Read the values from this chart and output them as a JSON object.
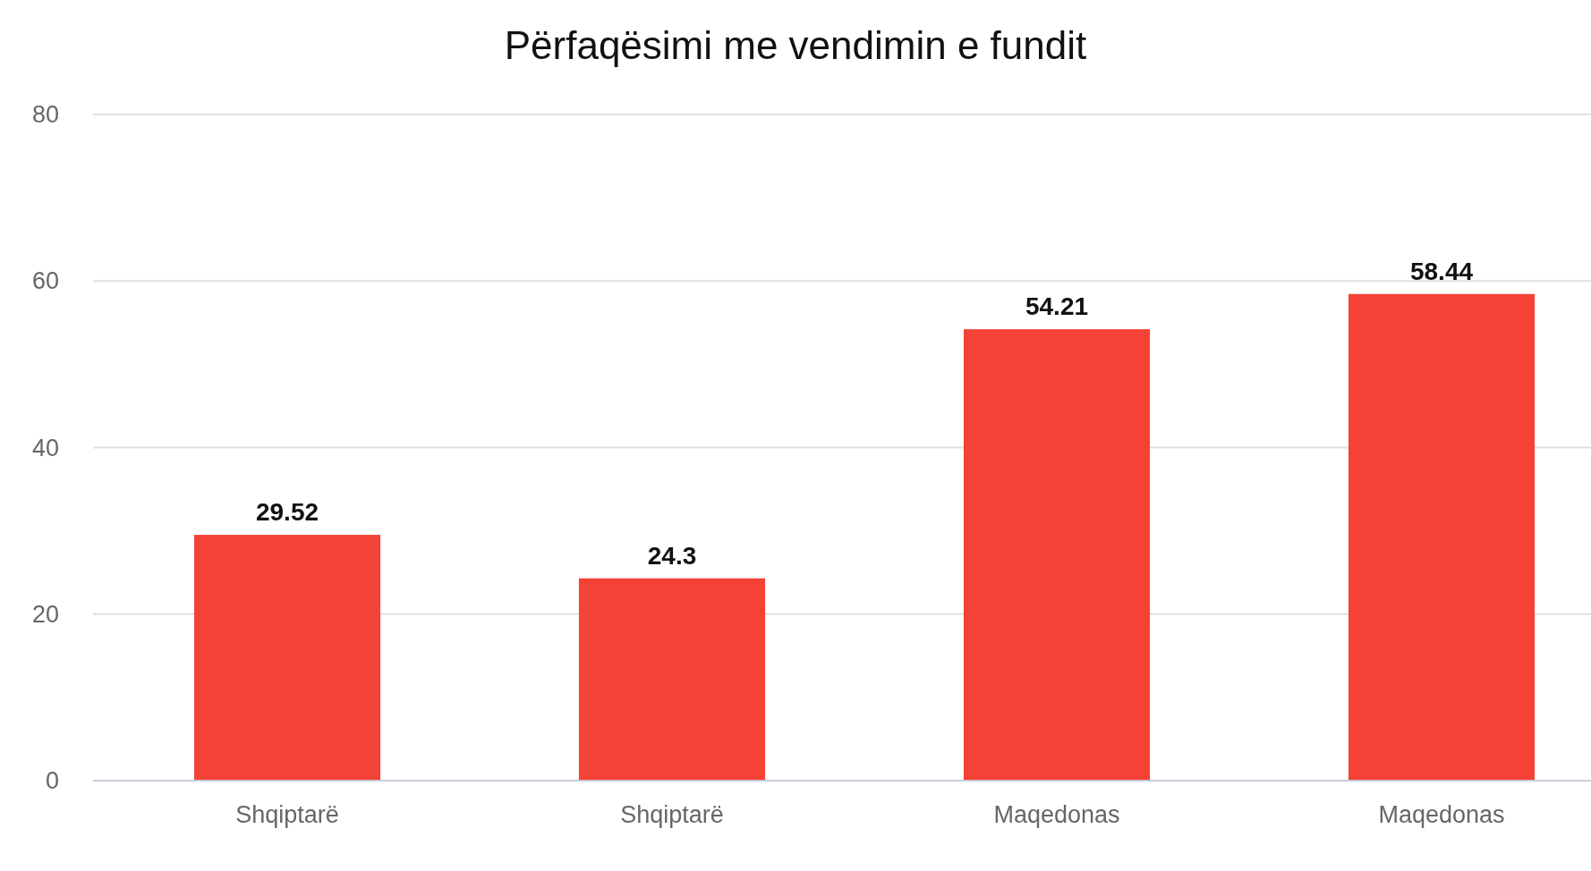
{
  "chart_data": {
    "type": "bar",
    "title": "Përfaqësimi me vendimin e fundit",
    "categories": [
      "Shqiptarë",
      "Shqiptarë",
      "Maqedonas",
      "Maqedonas"
    ],
    "values": [
      29.52,
      24.3,
      54.21,
      58.44
    ],
    "color": "#f44336",
    "ylim": [
      0,
      80
    ],
    "yticks": [
      0,
      20,
      40,
      60,
      80
    ],
    "grid": true,
    "data_labels": true
  }
}
